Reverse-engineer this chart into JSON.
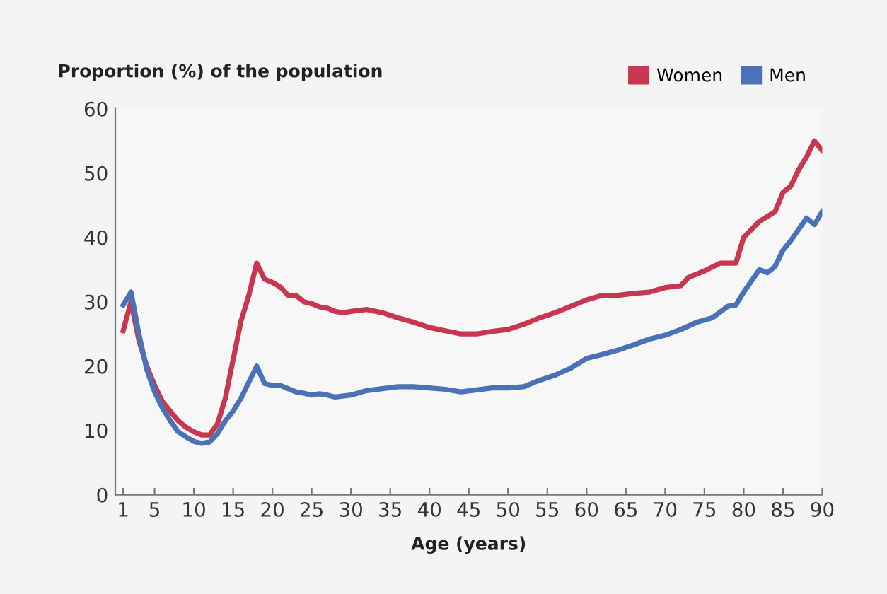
{
  "chart_data": {
    "type": "line",
    "ylabel": "Proportion (%) of the population",
    "xlabel": "Age (years)",
    "xlim": [
      0,
      90
    ],
    "xticks": [
      1,
      5,
      10,
      15,
      20,
      25,
      30,
      35,
      40,
      45,
      50,
      55,
      60,
      65,
      70,
      75,
      80,
      85,
      90
    ],
    "ylim": [
      0,
      60
    ],
    "yticks": [
      0,
      10,
      20,
      30,
      40,
      50,
      60
    ],
    "grid": false,
    "legend": "top right",
    "marker": "none",
    "line_style": "solid",
    "series": [
      {
        "name": "Women",
        "color": "#c8374f",
        "x": [
          1,
          2,
          3,
          4,
          5,
          6,
          7,
          8,
          9,
          10,
          11,
          12,
          13,
          14,
          15,
          16,
          17,
          18,
          19,
          20,
          21,
          22,
          23,
          24,
          25,
          26,
          27,
          28,
          29,
          30,
          32,
          34,
          36,
          38,
          40,
          42,
          44,
          46,
          48,
          50,
          52,
          54,
          56,
          58,
          60,
          62,
          64,
          66,
          68,
          70,
          72,
          73,
          75,
          77,
          79,
          80,
          82,
          84,
          85,
          86,
          87,
          88,
          89,
          90
        ],
        "values": [
          25.5,
          30,
          24,
          20,
          17,
          14.5,
          13,
          11.5,
          10.5,
          9.8,
          9.3,
          9.3,
          11,
          15,
          21,
          27,
          31,
          36,
          33.5,
          33,
          32.3,
          31,
          31,
          30,
          29.7,
          29.2,
          29,
          28.5,
          28.3,
          28.5,
          28.8,
          28.3,
          27.5,
          26.8,
          26,
          25.5,
          25,
          25,
          25.4,
          25.7,
          26.5,
          27.5,
          28.3,
          29.3,
          30.3,
          31,
          31,
          31.3,
          31.5,
          32.2,
          32.5,
          33.8,
          34.8,
          36,
          36,
          40,
          42.5,
          44,
          47,
          48,
          50.5,
          52.5,
          55,
          53.5
        ]
      },
      {
        "name": "Men",
        "color": "#4a72b8",
        "x": [
          1,
          2,
          3,
          4,
          5,
          6,
          7,
          8,
          9,
          10,
          11,
          12,
          13,
          14,
          15,
          16,
          17,
          18,
          19,
          20,
          21,
          22,
          23,
          24,
          25,
          26,
          27,
          28,
          30,
          32,
          34,
          36,
          38,
          40,
          42,
          44,
          46,
          48,
          50,
          52,
          54,
          56,
          58,
          60,
          62,
          64,
          66,
          68,
          70,
          72,
          74,
          76,
          78,
          79,
          80,
          82,
          83,
          84,
          85,
          86,
          88,
          89,
          90
        ],
        "values": [
          29.5,
          31.5,
          25,
          19.5,
          16,
          13.5,
          11.5,
          9.8,
          9,
          8.3,
          8,
          8.2,
          9.5,
          11.5,
          13,
          15,
          17.5,
          20,
          17.3,
          17,
          17,
          16.5,
          16,
          15.8,
          15.5,
          15.7,
          15.5,
          15.2,
          15.5,
          16.2,
          16.5,
          16.8,
          16.8,
          16.6,
          16.4,
          16,
          16.3,
          16.6,
          16.6,
          16.8,
          17.8,
          18.6,
          19.7,
          21.2,
          21.8,
          22.5,
          23.3,
          24.2,
          24.8,
          25.7,
          26.8,
          27.5,
          29.3,
          29.5,
          31.5,
          35,
          34.5,
          35.5,
          38,
          39.5,
          43,
          42,
          44
        ]
      }
    ]
  }
}
